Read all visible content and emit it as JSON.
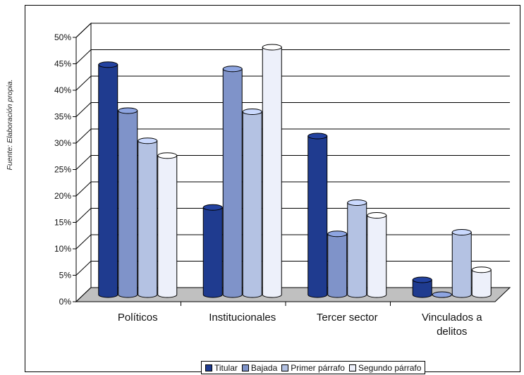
{
  "source_note": "Fuente: Elaboración propia.",
  "chart_data": {
    "type": "bar",
    "style": "3d-clustered-column",
    "categories": [
      "Políticos",
      "Institucionales",
      "Tercer sector",
      "Vinculados a\ndelitos"
    ],
    "series": [
      {
        "name": "Titular",
        "color": "#1f3b8f",
        "values": [
          43.5,
          16.5,
          30.0,
          2.8
        ]
      },
      {
        "name": "Bajada",
        "color": "#7f93c9",
        "values": [
          34.8,
          42.7,
          11.5,
          0.0
        ]
      },
      {
        "name": "Primer párrafo",
        "color": "#b4c2e3",
        "values": [
          29.1,
          34.6,
          17.4,
          11.8
        ]
      },
      {
        "name": "Segundo párrafo",
        "color": "#edf0fa",
        "values": [
          26.3,
          46.8,
          15.0,
          4.7
        ]
      }
    ],
    "y_ticks": [
      "0%",
      "5%",
      "10%",
      "15%",
      "20%",
      "25%",
      "30%",
      "35%",
      "40%",
      "45%",
      "50%"
    ],
    "ylim": [
      0,
      50
    ],
    "grid": true,
    "legend_position": "bottom"
  }
}
